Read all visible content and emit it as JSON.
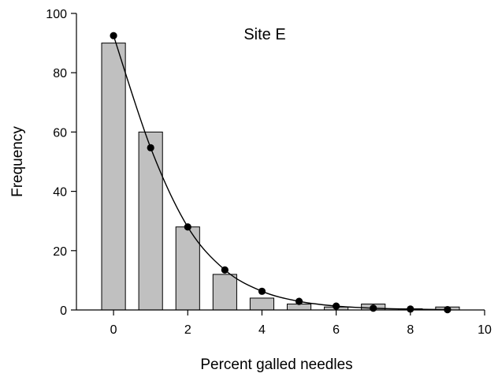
{
  "chart_data": {
    "type": "bar",
    "title": "",
    "annotation": "Site E",
    "xlabel": "Percent galled needles",
    "ylabel": "Frequency",
    "xlim": [
      -1,
      10
    ],
    "ylim": [
      0,
      100
    ],
    "xticks": [
      0,
      2,
      4,
      6,
      8,
      10
    ],
    "yticks": [
      0,
      20,
      40,
      60,
      80,
      100
    ],
    "grid": false,
    "legend": "none",
    "colors": {
      "bar_fill": "#c0c0c0",
      "bar_stroke": "#000000",
      "line": "#000000",
      "marker": "#000000"
    },
    "bars": {
      "x": [
        0,
        1,
        2,
        3,
        4,
        5,
        6,
        7,
        8,
        9
      ],
      "values": [
        90,
        60,
        28,
        12,
        4,
        2,
        1,
        2,
        0.4,
        1
      ]
    },
    "fitted_curve": {
      "x": [
        0,
        1,
        2,
        3,
        4,
        5,
        6,
        7,
        8,
        9
      ],
      "values": [
        92.5,
        54.7,
        28,
        13.5,
        6.3,
        2.9,
        1.3,
        0.6,
        0.3,
        0.1
      ]
    }
  }
}
